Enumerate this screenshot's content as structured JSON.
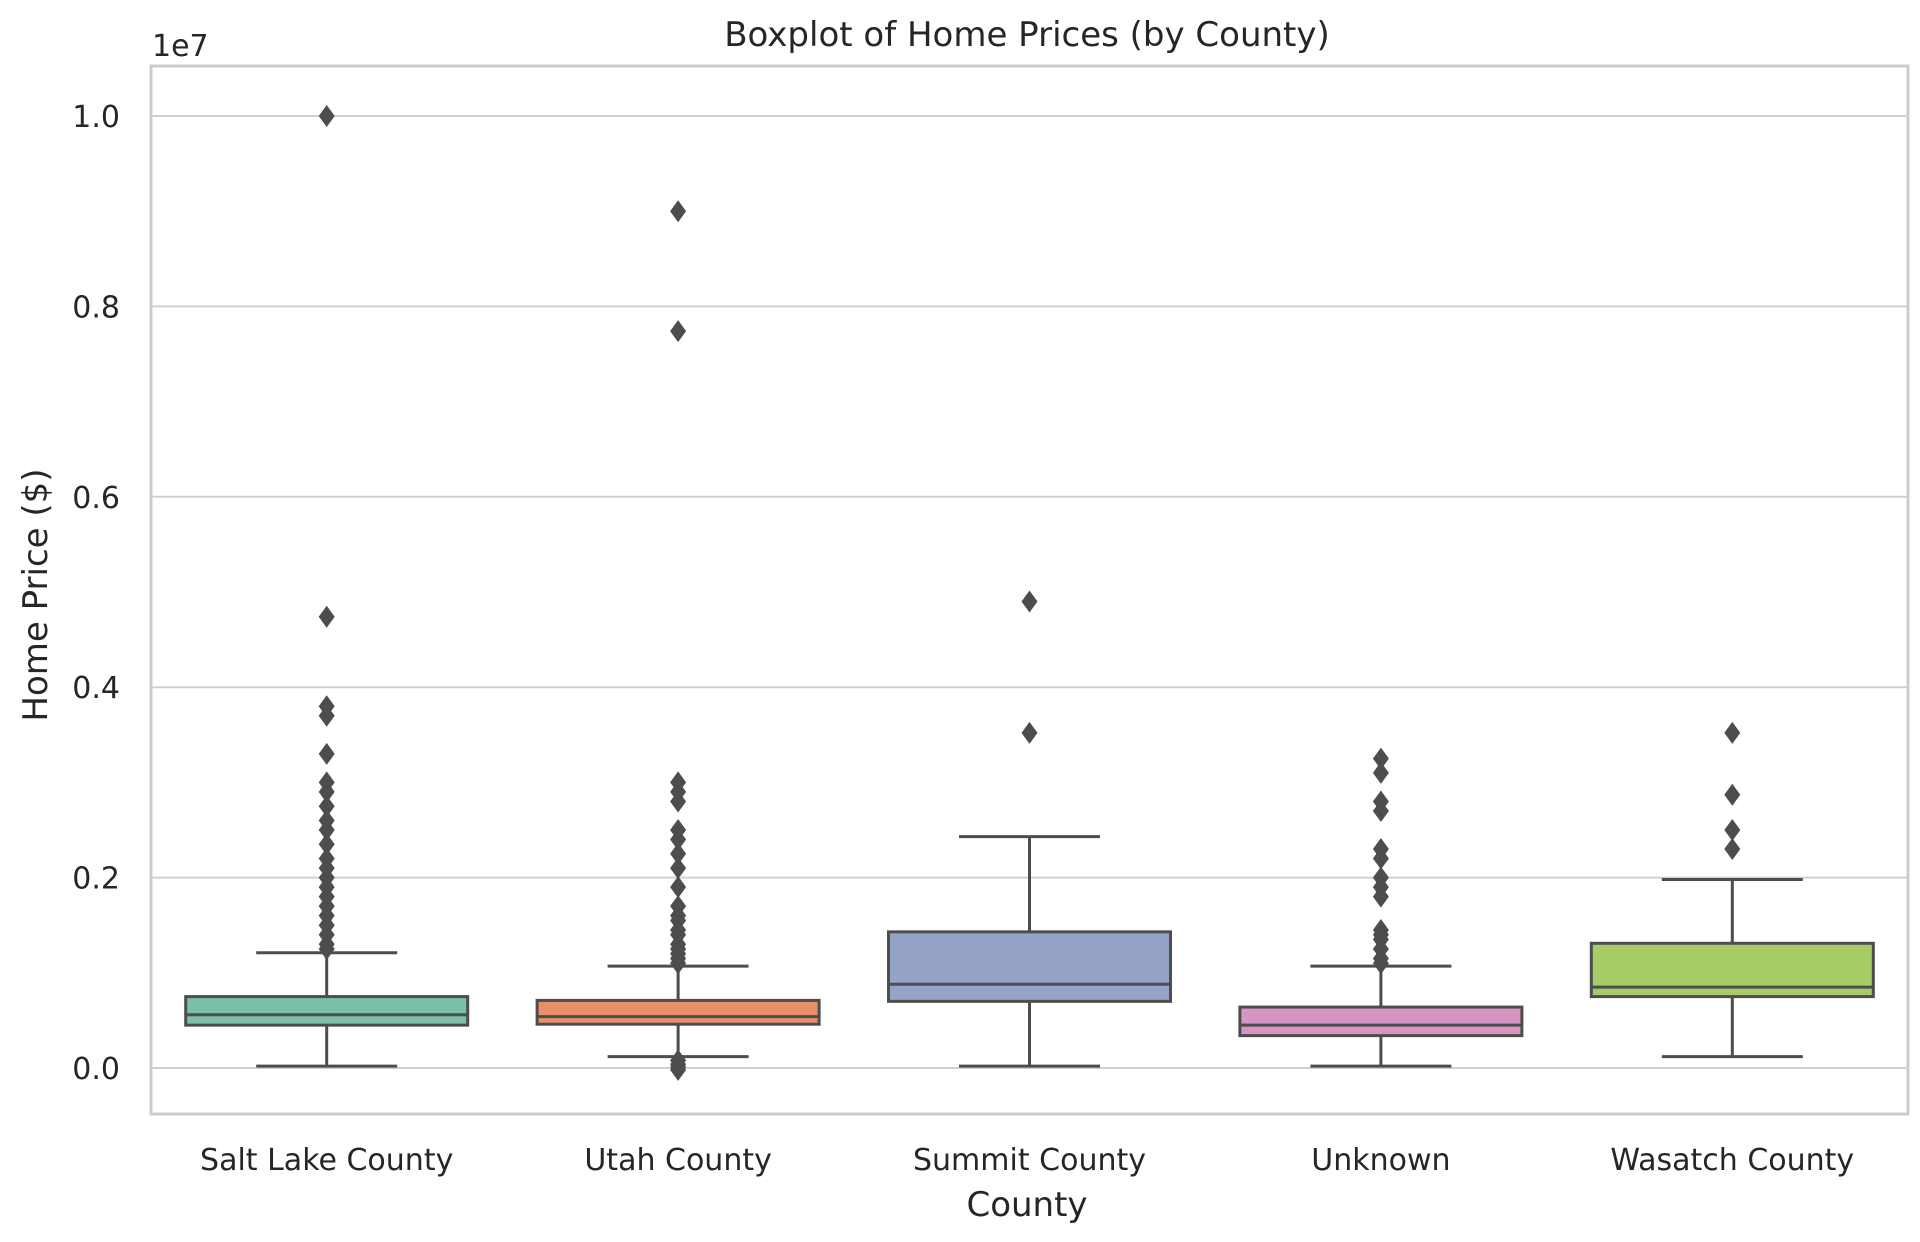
{
  "chart_data": {
    "type": "boxplot",
    "title": "Boxplot of Home Prices (by County)",
    "xlabel": "County",
    "ylabel": "Home Price ($)",
    "y_offset_label": "1e7",
    "ylim": [
      -0.05,
      1.05
    ],
    "y_ticks": [
      0.0,
      0.2,
      0.4,
      0.6,
      0.8,
      1.0
    ],
    "y_tick_labels": [
      "0.0",
      "0.2",
      "0.4",
      "0.6",
      "0.8",
      "1.0"
    ],
    "grid": true,
    "legend": "none",
    "categories": [
      "Salt Lake County",
      "Utah County",
      "Summit County",
      "Unknown",
      "Wasatch County"
    ],
    "boxes": [
      {
        "category": "Salt Lake County",
        "color": "#7bbfa6",
        "whisker_low": 0.002,
        "q1": 0.045,
        "median": 0.056,
        "q3": 0.075,
        "whisker_high": 0.121,
        "outliers": [
          1.0,
          0.474,
          0.38,
          0.37,
          0.33,
          0.3,
          0.29,
          0.275,
          0.26,
          0.25,
          0.235,
          0.22,
          0.21,
          0.2,
          0.19,
          0.18,
          0.17,
          0.16,
          0.15,
          0.14,
          0.13,
          0.125
        ]
      },
      {
        "category": "Utah County",
        "color": "#e6906a",
        "whisker_low": 0.012,
        "q1": 0.046,
        "median": 0.054,
        "q3": 0.071,
        "whisker_high": 0.107,
        "outliers": [
          0.9,
          0.774,
          0.3,
          0.29,
          0.28,
          0.25,
          0.24,
          0.225,
          0.21,
          0.19,
          0.17,
          0.16,
          0.155,
          0.145,
          0.14,
          0.13,
          0.125,
          0.12,
          0.115,
          0.11,
          0.008,
          0.004,
          0.001,
          -0.002
        ]
      },
      {
        "category": "Summit County",
        "color": "#95a3c6",
        "whisker_low": 0.002,
        "q1": 0.07,
        "median": 0.088,
        "q3": 0.143,
        "whisker_high": 0.243,
        "outliers": [
          0.49,
          0.352
        ]
      },
      {
        "category": "Unknown",
        "color": "#d695c3",
        "whisker_low": 0.002,
        "q1": 0.034,
        "median": 0.045,
        "q3": 0.064,
        "whisker_high": 0.107,
        "outliers": [
          0.325,
          0.31,
          0.28,
          0.27,
          0.23,
          0.22,
          0.2,
          0.19,
          0.18,
          0.145,
          0.14,
          0.135,
          0.125,
          0.115,
          0.11
        ]
      },
      {
        "category": "Wasatch County",
        "color": "#a6cc66",
        "whisker_low": 0.012,
        "q1": 0.075,
        "median": 0.085,
        "q3": 0.131,
        "whisker_high": 0.198,
        "outliers": [
          0.352,
          0.287,
          0.25,
          0.23
        ]
      }
    ]
  }
}
